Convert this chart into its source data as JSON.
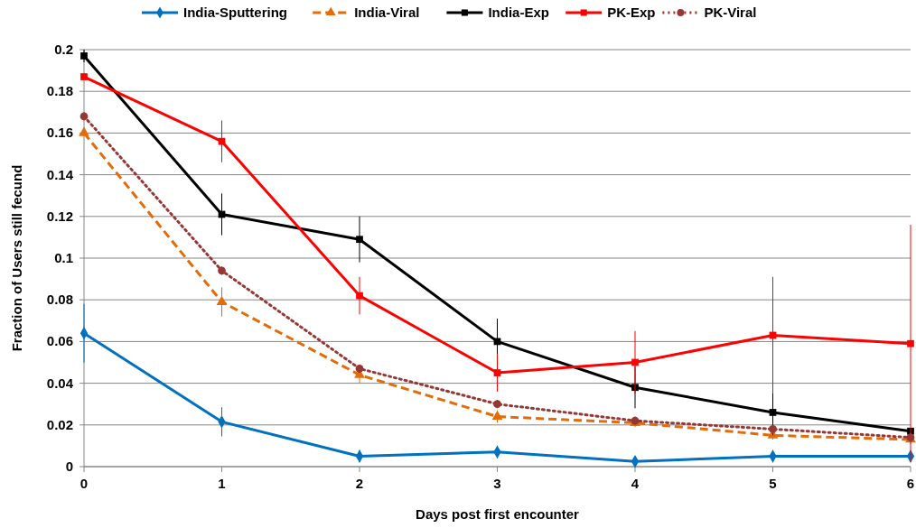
{
  "chart_data": {
    "type": "line",
    "xlabel": "Days post first encounter",
    "ylabel": "Fraction of Users still fecund",
    "x": [
      0,
      1,
      2,
      3,
      4,
      5,
      6
    ],
    "xlim": [
      0,
      6
    ],
    "xticks": [
      0,
      1,
      2,
      3,
      4,
      5,
      6
    ],
    "ylim": [
      0,
      0.2
    ],
    "yticks": [
      0,
      0.02,
      0.04,
      0.06,
      0.08,
      0.1,
      0.12,
      0.14,
      0.16,
      0.18,
      0.2
    ],
    "grid": "y",
    "legend": "top",
    "series": [
      {
        "name": "India-Sputtering",
        "color": "#0070c0",
        "marker": "diamond",
        "line_style": "solid",
        "values": [
          0.064,
          0.0215,
          0.005,
          0.007,
          0.0025,
          0.005,
          0.005
        ],
        "errors": [
          0.014,
          0.007,
          0.003,
          0.003,
          0.002,
          0.003,
          null
        ]
      },
      {
        "name": "India-Viral",
        "color": "#e36c09",
        "marker": "triangle",
        "line_style": "dashed",
        "values": [
          0.16,
          0.079,
          0.044,
          0.024,
          0.021,
          0.015,
          0.013
        ],
        "errors": [
          null,
          0.007,
          0.004,
          0.003,
          0.002,
          0.002,
          0.002
        ]
      },
      {
        "name": "India-Exp",
        "color": "#000000",
        "marker": "square",
        "line_style": "solid",
        "values": [
          0.197,
          0.121,
          0.109,
          0.06,
          0.038,
          0.026,
          0.017
        ],
        "errors": [
          0.003,
          0.01,
          0.011,
          0.011,
          0.01,
          0.011,
          null
        ]
      },
      {
        "name": "PK-Exp",
        "color": "#ff0000",
        "marker": "square",
        "line_style": "solid",
        "values": [
          0.187,
          0.156,
          0.082,
          0.045,
          0.05,
          0.063,
          0.059
        ],
        "errors": [
          null,
          0.01,
          0.009,
          0.009,
          0.015,
          0.028,
          0.057
        ]
      },
      {
        "name": "PK-Viral",
        "color": "#953735",
        "marker": "circle",
        "line_style": "dotted",
        "values": [
          0.168,
          0.094,
          0.047,
          0.03,
          0.022,
          0.018,
          0.014
        ],
        "errors": [
          0.002,
          0.002,
          0.002,
          0.002,
          0.002,
          0.002,
          0.002
        ]
      }
    ]
  }
}
